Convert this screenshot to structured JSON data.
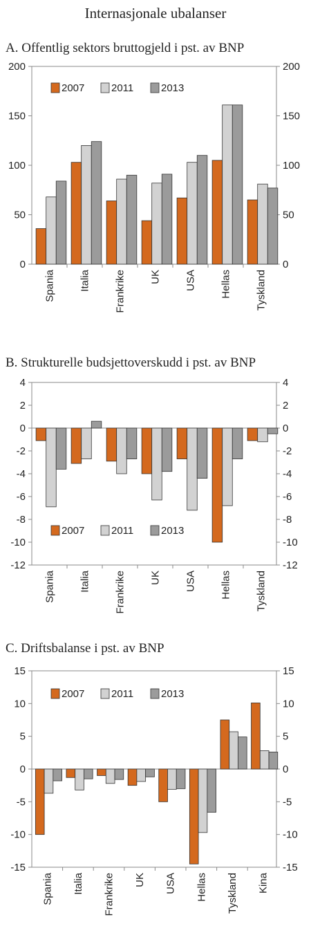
{
  "title": "Internasjonale ubalanser",
  "colors": [
    "#d4691e",
    "#d2d2d2",
    "#9b9b9b"
  ],
  "chart_data": [
    {
      "type": "bar",
      "title": "A.  Offentlig sektors bruttogjeld i pst. av BNP",
      "categories": [
        "Spania",
        "Italia",
        "Frankrike",
        "UK",
        "USA",
        "Hellas",
        "Tyskland"
      ],
      "series": [
        {
          "name": "2007",
          "values": [
            36,
            103,
            64,
            44,
            67,
            105,
            65
          ]
        },
        {
          "name": "2011",
          "values": [
            68,
            120,
            86,
            82,
            103,
            161,
            81
          ]
        },
        {
          "name": "2013",
          "values": [
            84,
            124,
            90,
            91,
            110,
            161,
            77
          ]
        }
      ],
      "ylim": [
        0,
        200
      ],
      "yticks": [
        0,
        50,
        100,
        150,
        200
      ],
      "legend": "top-left"
    },
    {
      "type": "bar",
      "title": "B.  Strukturelle budsjettoverskudd i pst. av BNP",
      "categories": [
        "Spania",
        "Italia",
        "Frankrike",
        "UK",
        "USA",
        "Hellas",
        "Tyskland"
      ],
      "series": [
        {
          "name": "2007",
          "values": [
            -1.1,
            -3.1,
            -2.9,
            -4.0,
            -2.7,
            -10.0,
            -1.1
          ]
        },
        {
          "name": "2011",
          "values": [
            -6.9,
            -2.7,
            -4.0,
            -6.3,
            -7.2,
            -6.8,
            -1.2
          ]
        },
        {
          "name": "2013",
          "values": [
            -3.6,
            0.6,
            -2.7,
            -3.8,
            -4.4,
            -2.7,
            -0.5
          ]
        }
      ],
      "ylim": [
        -12,
        4
      ],
      "yticks": [
        -12,
        -10,
        -8,
        -6,
        -4,
        -2,
        0,
        2,
        4
      ],
      "legend": "bottom-left"
    },
    {
      "type": "bar",
      "title": "C.  Driftsbalanse i pst. av BNP",
      "categories": [
        "Spania",
        "Italia",
        "Frankrike",
        "UK",
        "USA",
        "Hellas",
        "Tyskland",
        "Kina"
      ],
      "series": [
        {
          "name": "2007",
          "values": [
            -10.0,
            -1.3,
            -1.0,
            -2.5,
            -5.0,
            -14.5,
            7.5,
            10.1
          ]
        },
        {
          "name": "2011",
          "values": [
            -3.7,
            -3.2,
            -2.2,
            -1.9,
            -3.1,
            -9.7,
            5.7,
            2.8
          ]
        },
        {
          "name": "2013",
          "values": [
            -1.8,
            -1.5,
            -1.6,
            -1.2,
            -3.0,
            -6.6,
            4.9,
            2.6
          ]
        }
      ],
      "ylim": [
        -15,
        15
      ],
      "yticks": [
        -15,
        -10,
        -5,
        0,
        5,
        10,
        15
      ],
      "legend": "top-left"
    }
  ]
}
